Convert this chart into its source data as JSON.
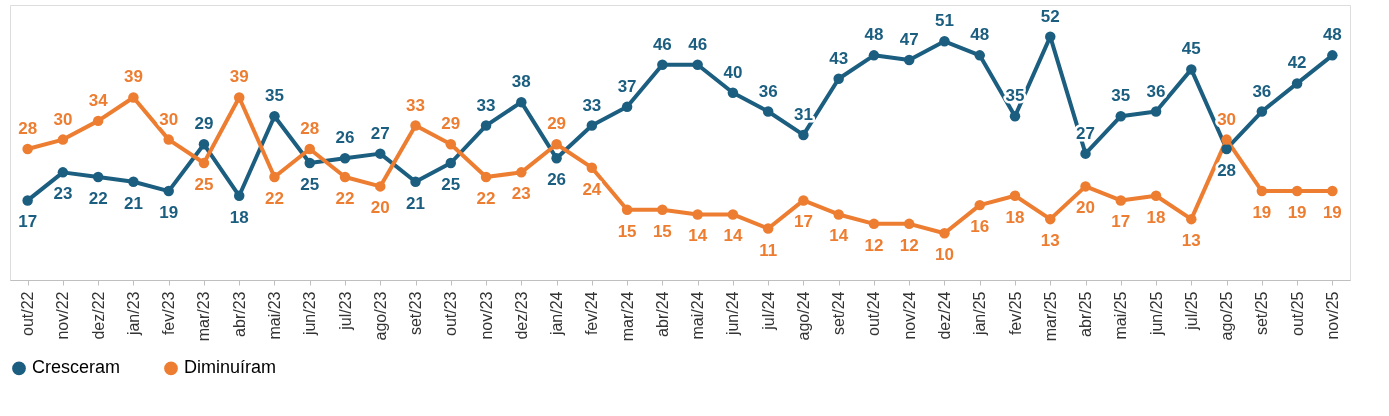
{
  "chart_data": {
    "type": "line",
    "categories": [
      "out/22",
      "nov/22",
      "dez/22",
      "jan/23",
      "fev/23",
      "mar/23",
      "abr/23",
      "mai/23",
      "jun/23",
      "jul/23",
      "ago/23",
      "set/23",
      "out/23",
      "nov/23",
      "dez/23",
      "jan/24",
      "fev/24",
      "mar/24",
      "abr/24",
      "mai/24",
      "jun/24",
      "jul/24",
      "ago/24",
      "set/24",
      "out/24",
      "nov/24",
      "dez/24",
      "jan/25",
      "fev/25",
      "mar/25",
      "abr/25",
      "mai/25",
      "jun/25",
      "jul/25",
      "ago/25",
      "set/25",
      "out/25",
      "nov/25"
    ],
    "series": [
      {
        "name": "Cresceram",
        "color": "#1b5e80",
        "values": [
          17,
          23,
          22,
          21,
          19,
          29,
          18,
          35,
          25,
          26,
          27,
          21,
          25,
          33,
          38,
          26,
          33,
          37,
          46,
          46,
          40,
          36,
          31,
          43,
          48,
          47,
          51,
          48,
          35,
          52,
          27,
          35,
          36,
          45,
          28,
          36,
          42,
          48
        ]
      },
      {
        "name": "Diminuíram",
        "color": "#ed7d31",
        "values": [
          28,
          30,
          34,
          39,
          30,
          25,
          39,
          22,
          28,
          22,
          20,
          33,
          29,
          22,
          23,
          29,
          24,
          15,
          15,
          14,
          14,
          11,
          17,
          14,
          12,
          12,
          10,
          16,
          18,
          13,
          20,
          17,
          18,
          13,
          30,
          19,
          19,
          19
        ]
      }
    ],
    "data_labels": true,
    "legend": "bottom",
    "grid": false,
    "marker": "circle",
    "line_style": "solid"
  }
}
